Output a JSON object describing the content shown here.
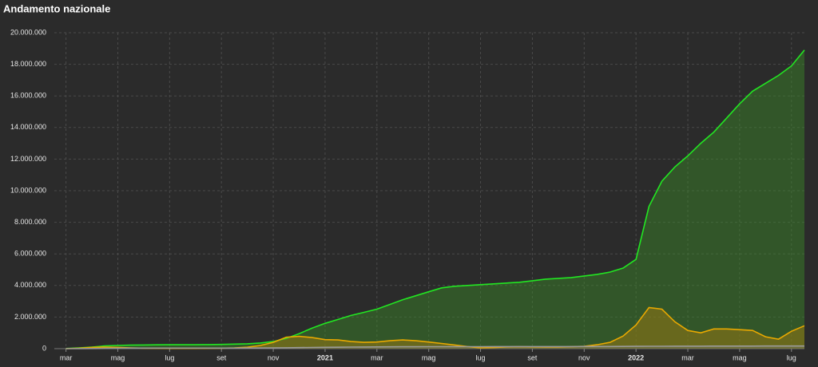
{
  "chart_data": {
    "type": "line",
    "title": "Andamento nazionale",
    "x": [
      0,
      0.5,
      1,
      1.5,
      2,
      2.5,
      3,
      3.5,
      4,
      4.5,
      5,
      5.5,
      6,
      6.5,
      7,
      7.5,
      8,
      8.5,
      9,
      9.5,
      10,
      10.5,
      11,
      11.5,
      12,
      12.5,
      13,
      13.5,
      14,
      14.5,
      15,
      15.5,
      16,
      16.5,
      17,
      17.5,
      18,
      18.5,
      19,
      19.5,
      20,
      20.5,
      21,
      21.5,
      22,
      22.5,
      23,
      23.5,
      24,
      24.5,
      25,
      25.5,
      26,
      26.5,
      27,
      27.5,
      28,
      28.5
    ],
    "series": [
      {
        "color": "#22e622",
        "fill": "rgba(60,140,40,0.45)",
        "values": [
          10000,
          50000,
          100000,
          170000,
          200000,
          220000,
          230000,
          240000,
          245000,
          250000,
          250000,
          260000,
          270000,
          290000,
          310000,
          360000,
          450000,
          650000,
          950000,
          1300000,
          1600000,
          1850000,
          2100000,
          2300000,
          2500000,
          2800000,
          3100000,
          3350000,
          3600000,
          3850000,
          3950000,
          4000000,
          4050000,
          4100000,
          4150000,
          4200000,
          4300000,
          4400000,
          4450000,
          4500000,
          4600000,
          4700000,
          4850000,
          5100000,
          5650000,
          9000000,
          10600000,
          11500000,
          12200000,
          13000000,
          13700000,
          14600000,
          15500000,
          16300000,
          16800000,
          17300000,
          17900000,
          18900000
        ]
      },
      {
        "color": "#e8a800",
        "fill": "rgba(150,120,20,0.55)",
        "values": [
          0,
          30000,
          80000,
          100000,
          80000,
          50000,
          30000,
          20000,
          15000,
          13000,
          15000,
          20000,
          30000,
          50000,
          90000,
          200000,
          400000,
          720000,
          780000,
          700000,
          570000,
          550000,
          450000,
          400000,
          420000,
          500000,
          550000,
          500000,
          420000,
          330000,
          230000,
          130000,
          50000,
          70000,
          110000,
          120000,
          110000,
          100000,
          100000,
          120000,
          150000,
          250000,
          400000,
          800000,
          1500000,
          2600000,
          2500000,
          1700000,
          1150000,
          1000000,
          1250000,
          1250000,
          1200000,
          1150000,
          750000,
          600000,
          1100000,
          1450000
        ]
      },
      {
        "color": "#9a9a9a",
        "fill": "rgba(120,120,120,0.3)",
        "values": [
          0,
          5000,
          10000,
          20000,
          30000,
          33000,
          34000,
          35000,
          35000,
          35000,
          35000,
          35000,
          36000,
          37000,
          39000,
          42000,
          47000,
          55000,
          65000,
          75000,
          85000,
          93000,
          100000,
          106000,
          110000,
          115000,
          120000,
          123000,
          125000,
          127000,
          127000,
          128000,
          128000,
          129000,
          130000,
          130000,
          131000,
          132000,
          133000,
          133000,
          134000,
          136000,
          138000,
          141000,
          145000,
          149000,
          152000,
          155000,
          157000,
          159000,
          161000,
          162000,
          163000,
          164000,
          165000,
          166000,
          167000,
          169000
        ]
      }
    ],
    "xlim": [
      -0.45,
      28.5
    ],
    "xticks": [
      {
        "value": 0,
        "label": "mar"
      },
      {
        "value": 2,
        "label": "mag"
      },
      {
        "value": 4,
        "label": "lug"
      },
      {
        "value": 6,
        "label": "set"
      },
      {
        "value": 8,
        "label": "nov"
      },
      {
        "value": 10,
        "label": "2021"
      },
      {
        "value": 12,
        "label": "mar"
      },
      {
        "value": 14,
        "label": "mag"
      },
      {
        "value": 16,
        "label": "lug"
      },
      {
        "value": 18,
        "label": "set"
      },
      {
        "value": 20,
        "label": "nov"
      },
      {
        "value": 22,
        "label": "2022"
      },
      {
        "value": 24,
        "label": "mar"
      },
      {
        "value": 26,
        "label": "mag"
      },
      {
        "value": 28,
        "label": "lug"
      }
    ],
    "ylim": [
      0,
      20000000
    ],
    "yticks": [
      0,
      {
        "value": 2000000,
        "label": "2.000.000"
      },
      {
        "value": 4000000,
        "label": "4.000.000"
      },
      {
        "value": 6000000,
        "label": "6.000.000"
      },
      {
        "value": 8000000,
        "label": "8.000.000"
      },
      {
        "value": 10000000,
        "label": "10.000.000"
      },
      {
        "value": 12000000,
        "label": "12.000.000"
      },
      {
        "value": 14000000,
        "label": "14.000.000"
      },
      {
        "value": 16000000,
        "label": "16.000.000"
      },
      {
        "value": 18000000,
        "label": "18.000.000"
      },
      {
        "value": 20000000,
        "label": "20.000.000"
      }
    ],
    "grid": true
  }
}
